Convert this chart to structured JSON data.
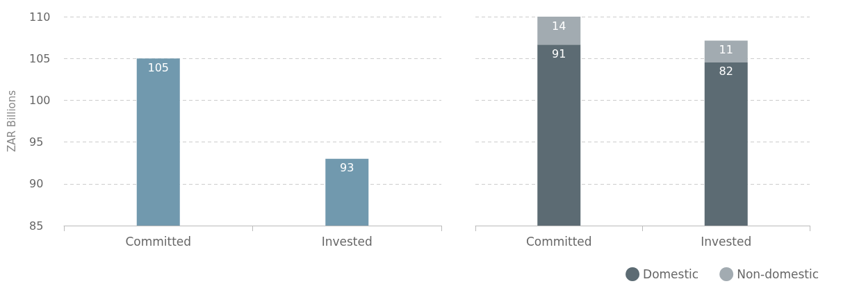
{
  "chart_data": [
    {
      "type": "bar",
      "ylabel": "ZAR Billions",
      "categories": [
        "Committed",
        "Invested"
      ],
      "values": [
        105,
        93
      ],
      "color": "#7199ae",
      "ylim": [
        85,
        110
      ],
      "yticks": [
        85,
        90,
        95,
        100,
        105,
        110
      ],
      "grid": "y",
      "data_labels": true
    },
    {
      "type": "bar",
      "stacked": true,
      "categories": [
        "Committed",
        "Invested"
      ],
      "series": [
        {
          "name": "Domestic",
          "color": "#5c6b73",
          "values": [
            91,
            82
          ]
        },
        {
          "name": "Non-domestic",
          "color": "#a2abb1",
          "values": [
            14,
            11
          ]
        }
      ],
      "ylim": [
        0,
        105
      ],
      "yticks": [
        {
          "value": 0,
          "label": null
        },
        {
          "value": 21,
          "label": null
        },
        {
          "value": 42,
          "label": null
        },
        {
          "value": 63,
          "label": null
        },
        {
          "value": 84,
          "label": null
        },
        {
          "value": 105,
          "label": null
        }
      ],
      "tick_labels": "x",
      "grid": "y",
      "legend": "bottom right",
      "data_labels": true
    }
  ]
}
